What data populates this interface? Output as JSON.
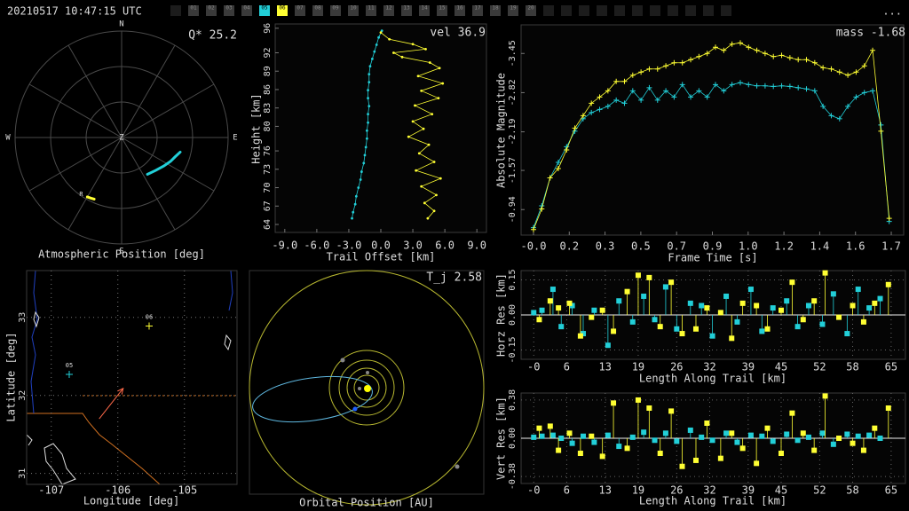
{
  "header": {
    "timestamp": "20210517 10:47:15 UTC",
    "menu": "...",
    "stations": [
      {
        "label": "01",
        "color": "#3a3a3a"
      },
      {
        "label": "02",
        "color": "#3a3a3a"
      },
      {
        "label": "03",
        "color": "#3a3a3a"
      },
      {
        "label": "04",
        "color": "#3a3a3a"
      },
      {
        "label": "05",
        "color": "#22cfd8"
      },
      {
        "label": "06",
        "color": "#ffff33"
      },
      {
        "label": "07",
        "color": "#3a3a3a"
      },
      {
        "label": "08",
        "color": "#3a3a3a"
      },
      {
        "label": "09",
        "color": "#3a3a3a"
      },
      {
        "label": "10",
        "color": "#3a3a3a"
      },
      {
        "label": "11",
        "color": "#3a3a3a"
      },
      {
        "label": "12",
        "color": "#3a3a3a"
      },
      {
        "label": "13",
        "color": "#3a3a3a"
      },
      {
        "label": "14",
        "color": "#3a3a3a"
      },
      {
        "label": "15",
        "color": "#3a3a3a"
      },
      {
        "label": "16",
        "color": "#3a3a3a"
      },
      {
        "label": "17",
        "color": "#3a3a3a"
      },
      {
        "label": "18",
        "color": "#3a3a3a"
      },
      {
        "label": "19",
        "color": "#3a3a3a"
      },
      {
        "label": "20",
        "color": "#3a3a3a"
      }
    ]
  },
  "chart_data": [
    {
      "type": "polar",
      "title": "Atmospheric Position [deg]",
      "annotation": "Q* 25.2",
      "direction_labels": [
        "N",
        "E",
        "S",
        "W"
      ],
      "center_label": "Z",
      "rlim": [
        0,
        90
      ],
      "series": [
        {
          "color": "#22cfd8",
          "az": [
            145,
            134,
            124,
            116,
            110,
            104
          ],
          "zen": [
            38,
            40,
            43,
            46,
            48,
            51
          ]
        },
        {
          "color": "#ffff33",
          "label": "R",
          "az": [
            210,
            207,
            204
          ],
          "zen": [
            58,
            57.5,
            57
          ]
        }
      ]
    },
    {
      "type": "line",
      "xlabel": "Trail Offset [km]",
      "ylabel": "Height [km]",
      "annotation": "vel 36.9",
      "grid": false,
      "xlim": [
        -9.9,
        9.9
      ],
      "xticks": [
        {
          "value": -9,
          "label": "-9.0"
        },
        {
          "value": -6,
          "label": "-6.0"
        },
        {
          "value": -3,
          "label": "-3.0"
        },
        {
          "value": 0,
          "label": "0.0"
        },
        {
          "value": 3,
          "label": "3.0"
        },
        {
          "value": 6,
          "label": "6.0"
        },
        {
          "value": 9,
          "label": "9.0"
        }
      ],
      "ylim": [
        62.7,
        96.7
      ],
      "yticks": [
        64,
        67,
        70,
        73,
        76,
        80,
        83,
        86,
        89,
        92,
        96
      ],
      "series": [
        {
          "color": "#22cfd8",
          "marker": "dot",
          "x": [
            0.1,
            -0.2,
            -0.4,
            -0.6,
            -0.8,
            -1.0,
            -1.1,
            -1.1,
            -1.2,
            -1.2,
            -1.1,
            -1.2,
            -1.2,
            -1.3,
            -1.3,
            -1.4,
            -1.5,
            -1.6,
            -1.8,
            -1.9,
            -2.1,
            -2.3,
            -2.4,
            -2.6,
            -2.7
          ],
          "y": [
            95.6,
            94.5,
            93.3,
            92.2,
            91.0,
            89.8,
            88.5,
            87.2,
            85.9,
            84.6,
            83.3,
            82.0,
            80.6,
            79.3,
            78.0,
            76.6,
            75.3,
            74.0,
            72.6,
            71.3,
            70.0,
            68.6,
            67.3,
            66.0,
            65.0
          ]
        },
        {
          "color": "#ffff33",
          "marker": "dot",
          "x": [
            0.0,
            0.8,
            3.0,
            4.2,
            1.2,
            2.0,
            4.6,
            5.5,
            3.5,
            5.8,
            3.8,
            5.4,
            3.2,
            4.8,
            3.0,
            4.0,
            2.6,
            4.5,
            3.6,
            5.0,
            3.3,
            5.6,
            3.8,
            5.2,
            4.1,
            5.0,
            4.4
          ],
          "y": [
            95.3,
            94.2,
            93.4,
            92.6,
            92.0,
            91.3,
            90.4,
            89.5,
            88.2,
            87.0,
            85.8,
            84.6,
            83.4,
            82.0,
            80.8,
            79.6,
            78.3,
            77.0,
            75.6,
            74.2,
            72.8,
            71.5,
            70.2,
            68.8,
            67.5,
            66.2,
            65.0
          ]
        }
      ]
    },
    {
      "type": "line",
      "xlabel": "Frame Time [s]",
      "ylabel": "Absolute Magnitude",
      "annotation": "mass -1.68",
      "grid": false,
      "xlim": [
        -0.06,
        1.79
      ],
      "xticks": [
        {
          "value": 0,
          "label": "-0.0"
        },
        {
          "value": 0.173,
          "label": "0.2"
        },
        {
          "value": 0.346,
          "label": "0.3"
        },
        {
          "value": 0.519,
          "label": "0.5"
        },
        {
          "value": 0.692,
          "label": "0.7"
        },
        {
          "value": 0.865,
          "label": "0.9"
        },
        {
          "value": 1.038,
          "label": "1.0"
        },
        {
          "value": 1.211,
          "label": "1.2"
        },
        {
          "value": 1.384,
          "label": "1.4"
        },
        {
          "value": 1.557,
          "label": "1.6"
        },
        {
          "value": 1.73,
          "label": "1.7"
        }
      ],
      "ylim": [
        -0.53,
        -3.91
      ],
      "yticks": [
        -3.45,
        -2.82,
        -2.19,
        -1.57,
        -0.94
      ],
      "series": [
        {
          "color": "#22cfd8",
          "marker": "plus",
          "x": [
            0,
            0.04,
            0.08,
            0.12,
            0.16,
            0.2,
            0.24,
            0.28,
            0.32,
            0.36,
            0.4,
            0.44,
            0.48,
            0.52,
            0.56,
            0.6,
            0.64,
            0.68,
            0.72,
            0.76,
            0.8,
            0.84,
            0.88,
            0.92,
            0.96,
            1.0,
            1.04,
            1.08,
            1.12,
            1.16,
            1.2,
            1.24,
            1.28,
            1.32,
            1.36,
            1.4,
            1.44,
            1.48,
            1.52,
            1.56,
            1.6,
            1.64,
            1.68,
            1.72
          ],
          "y": [
            -0.65,
            -1.0,
            -1.45,
            -1.7,
            -1.95,
            -2.2,
            -2.4,
            -2.5,
            -2.55,
            -2.6,
            -2.7,
            -2.65,
            -2.85,
            -2.7,
            -2.9,
            -2.7,
            -2.85,
            -2.75,
            -2.95,
            -2.75,
            -2.85,
            -2.75,
            -2.95,
            -2.85,
            -2.95,
            -2.98,
            -2.95,
            -2.93,
            -2.93,
            -2.92,
            -2.93,
            -2.92,
            -2.9,
            -2.88,
            -2.85,
            -2.6,
            -2.45,
            -2.4,
            -2.6,
            -2.75,
            -2.82,
            -2.85,
            -2.3,
            -0.75
          ]
        },
        {
          "color": "#ffff33",
          "marker": "plus",
          "x": [
            0,
            0.04,
            0.08,
            0.12,
            0.16,
            0.2,
            0.24,
            0.28,
            0.32,
            0.36,
            0.4,
            0.44,
            0.48,
            0.52,
            0.56,
            0.6,
            0.64,
            0.68,
            0.72,
            0.76,
            0.8,
            0.84,
            0.88,
            0.92,
            0.96,
            1.0,
            1.04,
            1.08,
            1.12,
            1.16,
            1.2,
            1.24,
            1.28,
            1.32,
            1.36,
            1.4,
            1.44,
            1.48,
            1.52,
            1.56,
            1.6,
            1.64,
            1.68,
            1.72
          ],
          "y": [
            -0.62,
            -0.95,
            -1.45,
            -1.6,
            -1.9,
            -2.25,
            -2.45,
            -2.65,
            -2.75,
            -2.85,
            -3.0,
            -3.0,
            -3.1,
            -3.15,
            -3.2,
            -3.2,
            -3.25,
            -3.3,
            -3.3,
            -3.35,
            -3.4,
            -3.45,
            -3.55,
            -3.5,
            -3.6,
            -3.62,
            -3.55,
            -3.5,
            -3.45,
            -3.4,
            -3.42,
            -3.38,
            -3.35,
            -3.35,
            -3.3,
            -3.22,
            -3.2,
            -3.15,
            -3.1,
            -3.15,
            -3.25,
            -3.5,
            -2.2,
            -0.8
          ]
        }
      ]
    },
    {
      "type": "map",
      "xlabel": "Longitude [deg]",
      "ylabel": "Latitude [deg]",
      "grid": true,
      "xlim": [
        -107.37,
        -104.21
      ],
      "xticks": [
        -107,
        -106,
        -105
      ],
      "ylim": [
        30.86,
        33.6
      ],
      "yticks": [
        31,
        32,
        33
      ],
      "stations": [
        {
          "label": "05",
          "lon": -106.73,
          "lat": 32.27,
          "color": "#22cfd8"
        },
        {
          "label": "06",
          "lon": -105.53,
          "lat": 32.89,
          "color": "#ffff33"
        }
      ],
      "trajectory": {
        "color": "#ff6a4a",
        "lon": [
          -106.28,
          -105.92
        ],
        "lat": [
          31.7,
          32.09
        ]
      }
    },
    {
      "type": "orbit",
      "title": "Orbital Position [AU]",
      "annotation": "T_j 2.58"
    },
    {
      "type": "stem",
      "xlabel": "Length Along Trail [km]",
      "ylabel": "Horz Res [km]",
      "grid": true,
      "xlim": [
        -2.3,
        67.6
      ],
      "xticks": [
        {
          "value": 0,
          "label": "-0"
        },
        6,
        13,
        19,
        26,
        32,
        39,
        45,
        52,
        58,
        65
      ],
      "ylim": [
        -0.19,
        0.19
      ],
      "yticks": [
        0.15,
        {
          "value": 0,
          "label": "0.00"
        },
        -0.15
      ],
      "series": [
        {
          "color": "#22cfd8",
          "x": [
            0,
            1.5,
            3.5,
            5,
            7,
            9,
            11,
            13.5,
            15.5,
            18,
            20,
            22,
            24,
            26,
            28.5,
            30.5,
            32.5,
            35,
            37,
            39.5,
            41.5,
            43.5,
            46,
            48,
            50,
            52.5,
            54.5,
            57,
            59,
            61,
            63
          ],
          "y": [
            0.01,
            0.02,
            0.11,
            -0.05,
            0.04,
            -0.08,
            0.02,
            -0.13,
            0.06,
            -0.03,
            0.08,
            -0.02,
            0.12,
            -0.06,
            0.05,
            0.04,
            -0.09,
            0.08,
            -0.03,
            0.11,
            -0.07,
            0.03,
            0.06,
            -0.05,
            0.04,
            -0.04,
            0.09,
            -0.08,
            0.11,
            0.03,
            0.07
          ]
        },
        {
          "color": "#ffff33",
          "x": [
            1,
            3,
            4.5,
            6.5,
            8.5,
            10.5,
            12.5,
            14.5,
            17,
            19,
            21,
            23,
            25,
            27,
            29.5,
            31.5,
            34,
            36,
            38,
            40.5,
            42.5,
            45,
            47,
            49,
            51,
            53,
            55.5,
            58,
            60,
            62,
            64.5
          ],
          "y": [
            -0.02,
            0.06,
            0.03,
            0.05,
            -0.09,
            -0.01,
            0.02,
            -0.07,
            0.1,
            0.17,
            0.16,
            -0.05,
            0.14,
            -0.08,
            -0.06,
            0.03,
            0.01,
            -0.1,
            0.05,
            0.04,
            -0.06,
            0.02,
            0.14,
            -0.02,
            0.06,
            0.18,
            -0.01,
            0.04,
            -0.03,
            0.05,
            0.13
          ]
        }
      ]
    },
    {
      "type": "stem",
      "xlabel": "Length Along Trail [km]",
      "ylabel": "Vert Res [km]",
      "grid": true,
      "xlim": [
        -2.3,
        67.6
      ],
      "xticks": [
        {
          "value": 0,
          "label": "-0"
        },
        6,
        13,
        19,
        26,
        32,
        39,
        45,
        52,
        58,
        65
      ],
      "ylim": [
        -0.45,
        0.45
      ],
      "yticks": [
        0.38,
        {
          "value": 0,
          "label": "0.00"
        },
        -0.38
      ],
      "series": [
        {
          "color": "#22cfd8",
          "x": [
            0,
            1.5,
            3.5,
            5,
            7,
            9,
            11,
            13.5,
            15.5,
            18,
            20,
            22,
            24,
            26,
            28.5,
            30.5,
            32.5,
            35,
            37,
            39.5,
            41.5,
            43.5,
            46,
            48,
            50,
            52.5,
            54.5,
            57,
            59,
            61,
            63
          ],
          "y": [
            0.01,
            0.02,
            0.03,
            0.0,
            -0.05,
            0.02,
            -0.04,
            0.03,
            -0.08,
            0.01,
            0.06,
            -0.02,
            0.05,
            -0.03,
            0.08,
            0.01,
            -0.02,
            0.05,
            -0.04,
            0.03,
            0.02,
            -0.03,
            0.04,
            -0.02,
            0.01,
            0.05,
            -0.06,
            0.04,
            0.02,
            0.03,
            0.0
          ]
        },
        {
          "color": "#ffff33",
          "x": [
            1,
            3,
            4.5,
            6.5,
            8.5,
            10.5,
            12.5,
            14.5,
            17,
            19,
            21,
            23,
            25,
            27,
            29.5,
            31.5,
            34,
            36,
            38,
            40.5,
            42.5,
            45,
            47,
            49,
            51,
            53,
            55.5,
            58,
            60,
            62,
            64.5
          ],
          "y": [
            0.1,
            0.12,
            -0.12,
            0.05,
            -0.15,
            0.02,
            -0.18,
            0.35,
            -0.1,
            0.38,
            0.3,
            -0.15,
            0.27,
            -0.28,
            -0.22,
            0.15,
            -0.2,
            0.05,
            -0.1,
            -0.25,
            0.1,
            -0.15,
            0.25,
            0.05,
            -0.12,
            0.42,
            0.0,
            -0.05,
            -0.12,
            0.1,
            0.3
          ]
        }
      ]
    }
  ]
}
